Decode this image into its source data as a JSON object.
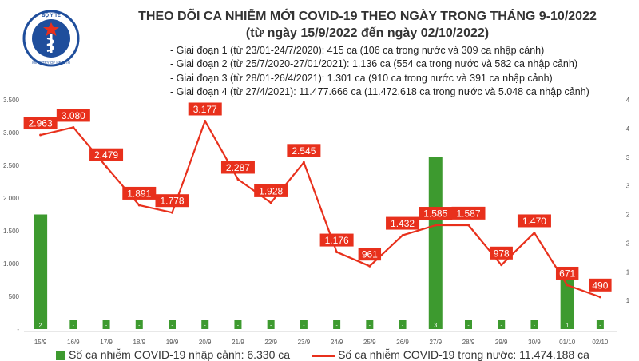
{
  "logo": {
    "top_text": "BỘ Y TẾ",
    "bottom_text": "MINISTRY OF HEALTH"
  },
  "title_line1": "THEO DÕI CA NHIỄM MỚI COVID-19 THEO NGÀY TRONG THÁNG 9-10/2022",
  "title_line2": "(từ ngày 15/9/2022 đến ngày 02/10/2022)",
  "notes": [
    "- Giai đoạn 1 (từ 23/01-24/7/2020): 415 ca (106 ca trong nước và 309 ca nhập cảnh)",
    "- Giai đoạn 2 (từ 25/7/2020-27/01/2021): 1.136 ca (554 ca trong nước và 582 ca nhập cảnh)",
    "- Giai đoạn 3 (từ 28/01-26/4/2021): 1.301 ca (910 ca trong nước và 391 ca nhập cảnh)",
    "- Giai đoạn 4 (từ 27/4/2021): 11.477.666 ca (11.472.618 ca trong nước và 5.048 ca nhập cảnh)"
  ],
  "legend": {
    "bar_label": "Số ca nhiễm COVID-19 nhập cảnh: 6.330 ca",
    "line_label": "Số ca nhiễm COVID-19 trong nước: 11.474.188 ca"
  },
  "chart_data": {
    "type": "bar+line",
    "categories": [
      "15/9",
      "16/9",
      "17/9",
      "18/9",
      "19/9",
      "20/9",
      "21/9",
      "22/9",
      "23/9",
      "24/9",
      "25/9",
      "26/9",
      "27/9",
      "28/9",
      "29/9",
      "30/9",
      "01/10",
      "02/10"
    ],
    "bar_series": {
      "axis": "right",
      "values": [
        2,
        0,
        0,
        0,
        0,
        0,
        0,
        0,
        0,
        0,
        0,
        0,
        3,
        0,
        0,
        0,
        1,
        0
      ],
      "labels": [
        "2",
        "-",
        "-",
        "-",
        "-",
        "-",
        "-",
        "-",
        "-",
        "-",
        "-",
        "-",
        "3",
        "-",
        "-",
        "-",
        "1",
        "-"
      ]
    },
    "line_series": {
      "axis": "left",
      "values": [
        2963,
        3080,
        2479,
        1891,
        1778,
        3177,
        2287,
        1928,
        2545,
        1176,
        961,
        1432,
        1585,
        1587,
        978,
        1470,
        671,
        490
      ],
      "labels": [
        "2.963",
        "3.080",
        "2.479",
        "1.891",
        "1.778",
        "3.177",
        "2.287",
        "1.928",
        "2.545",
        "1.176",
        "961",
        "1.432",
        "1.585",
        "1.587",
        "978",
        "1.470",
        "671",
        "490"
      ]
    },
    "left_axis": {
      "range": [
        0,
        3500
      ],
      "ticks": [
        "-",
        "500",
        "1.000",
        "1.500",
        "2.000",
        "2.500",
        "3.000",
        "3.500"
      ],
      "tick_values": [
        0,
        500,
        1000,
        1500,
        2000,
        2500,
        3000,
        3500
      ]
    },
    "right_axis": {
      "range": [
        0,
        4
      ],
      "ticks": [
        "1",
        "1",
        "2",
        "2",
        "3",
        "3",
        "4",
        "4"
      ],
      "tick_values": [
        0.5,
        1,
        1.5,
        2,
        2.5,
        3,
        3.5,
        4
      ]
    },
    "grid": false,
    "legend_position": "bottom",
    "colors": {
      "bar": "#3d9a2f",
      "line": "#e8301c",
      "label_bg": "#e8301c",
      "label_text": "#ffffff",
      "axis_text": "#555555"
    }
  }
}
